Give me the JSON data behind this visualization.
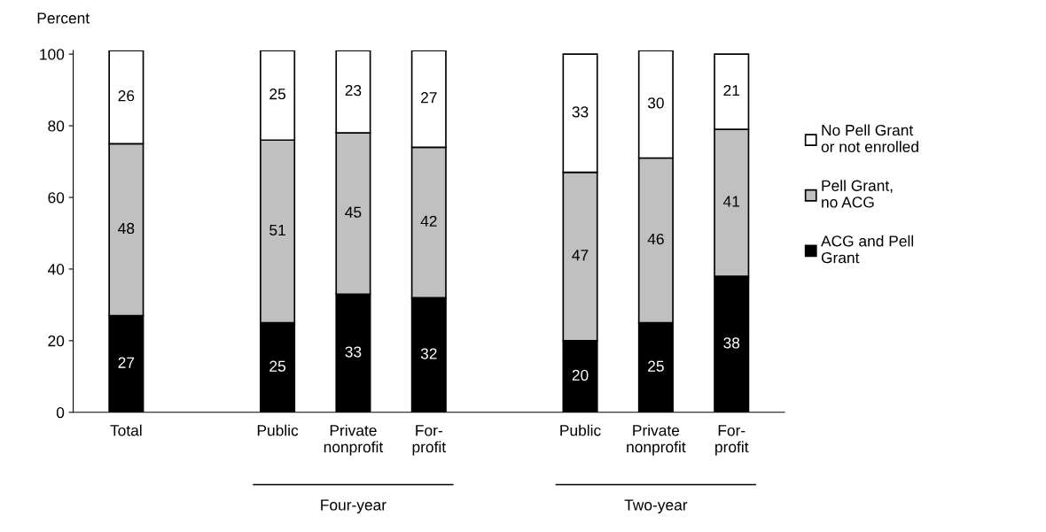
{
  "chart_data": {
    "type": "bar",
    "stacked": true,
    "ylabel": "Percent",
    "categories": [
      "Total",
      null,
      "Public",
      "Private\nnonprofit",
      "For-\nprofit",
      null,
      "Public",
      "Private\nnonprofit",
      "For-\nprofit"
    ],
    "series": [
      {
        "name": "ACG and Pell\nGrant",
        "color": "#000000",
        "values": [
          27,
          null,
          25,
          33,
          32,
          null,
          20,
          25,
          38
        ]
      },
      {
        "name": "Pell Grant,\nno ACG",
        "color": "#c0c0c0",
        "values": [
          48,
          null,
          51,
          45,
          42,
          null,
          47,
          46,
          41
        ]
      },
      {
        "name": "No Pell Grant\nor not enrolled",
        "color": "#ffffff",
        "values": [
          26,
          null,
          25,
          23,
          27,
          null,
          33,
          30,
          21
        ]
      }
    ],
    "ylim": [
      0,
      101
    ],
    "yticks": [
      0,
      20,
      40,
      60,
      80,
      100
    ],
    "grid": false,
    "legend": "right",
    "data_labels": true,
    "annotations": [
      "Four-year",
      "Two-year"
    ]
  }
}
